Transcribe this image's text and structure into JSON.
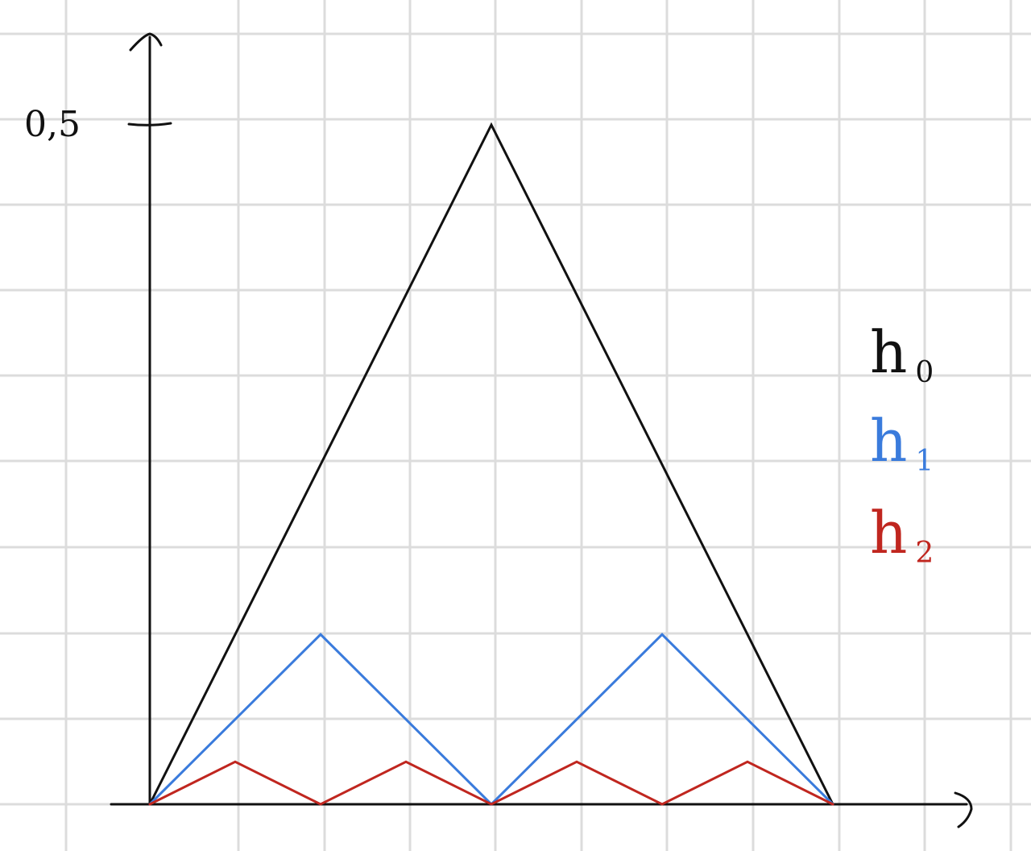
{
  "chart_data": {
    "type": "line",
    "title": "",
    "xlabel": "",
    "ylabel": "",
    "x_range": [
      0,
      1
    ],
    "ylim": [
      0,
      0.5
    ],
    "y_ticks": [
      {
        "value": 0.5,
        "label": "0,5"
      }
    ],
    "grid": true,
    "legend_placement": "right",
    "series": [
      {
        "name": "h",
        "subscript": "0",
        "color": "#111111",
        "points": [
          [
            0,
            0
          ],
          [
            0.5,
            0.5
          ],
          [
            1,
            0
          ]
        ]
      },
      {
        "name": "h",
        "subscript": "1",
        "color": "#3a7bdc",
        "points": [
          [
            0,
            0
          ],
          [
            0.25,
            0.125
          ],
          [
            0.5,
            0
          ],
          [
            0.75,
            0.125
          ],
          [
            1,
            0
          ]
        ]
      },
      {
        "name": "h",
        "subscript": "2",
        "color": "#c0261f",
        "points": [
          [
            0,
            0
          ],
          [
            0.125,
            0.03125
          ],
          [
            0.25,
            0
          ],
          [
            0.375,
            0.03125
          ],
          [
            0.5,
            0
          ],
          [
            0.625,
            0.03125
          ],
          [
            0.75,
            0
          ],
          [
            0.875,
            0.03125
          ],
          [
            1,
            0
          ]
        ]
      }
    ]
  }
}
